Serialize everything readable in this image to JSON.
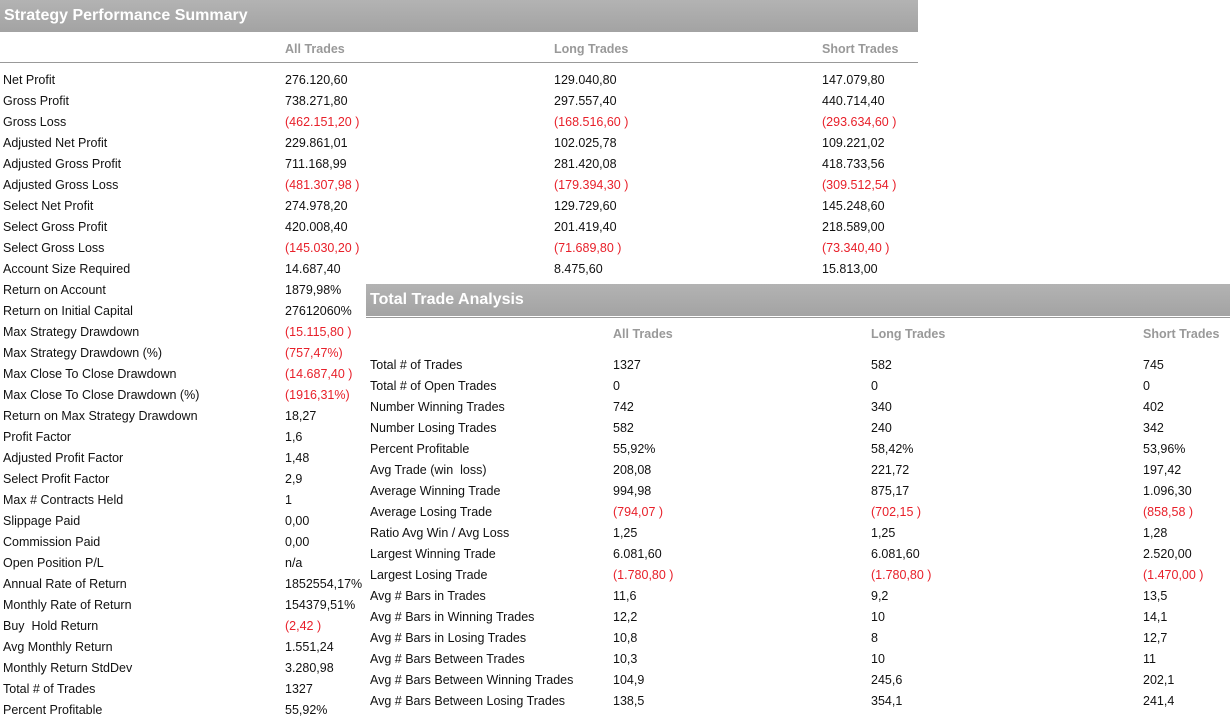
{
  "table1": {
    "title": "Strategy Performance Summary",
    "columns": [
      "All Trades",
      "Long Trades",
      "Short Trades"
    ],
    "rows": [
      [
        "Net Profit",
        "276.120,60",
        "129.040,80",
        "147.079,80"
      ],
      [
        "Gross Profit",
        "738.271,80",
        "297.557,40",
        "440.714,40"
      ],
      [
        "Gross Loss",
        "(462.151,20 )",
        "(168.516,60 )",
        "(293.634,60 )"
      ],
      [
        "Adjusted Net Profit",
        "229.861,01",
        "102.025,78",
        "109.221,02"
      ],
      [
        "Adjusted Gross Profit",
        "711.168,99",
        "281.420,08",
        "418.733,56"
      ],
      [
        "Adjusted Gross Loss",
        "(481.307,98 )",
        "(179.394,30 )",
        "(309.512,54 )"
      ],
      [
        "Select Net Profit",
        "274.978,20",
        "129.729,60",
        "145.248,60"
      ],
      [
        "Select Gross Profit",
        "420.008,40",
        "201.419,40",
        "218.589,00"
      ],
      [
        "Select Gross Loss",
        "(145.030,20 )",
        "(71.689,80 )",
        "(73.340,40 )"
      ],
      [
        "Account Size Required",
        "14.687,40",
        "8.475,60",
        "15.813,00"
      ],
      [
        "Return on Account",
        "1879,98%"
      ],
      [
        "Return on Initial Capital",
        "27612060%"
      ],
      [
        "Max Strategy Drawdown",
        "(15.115,80 )"
      ],
      [
        "Max Strategy Drawdown (%)",
        "(757,47%)"
      ],
      [
        "Max Close To Close Drawdown",
        "(14.687,40 )"
      ],
      [
        "Max Close To Close Drawdown (%)",
        "(1916,31%)"
      ],
      [
        "Return on Max Strategy Drawdown",
        "18,27"
      ],
      [
        "Profit Factor",
        "1,6"
      ],
      [
        "Adjusted Profit Factor",
        "1,48"
      ],
      [
        "Select Profit Factor",
        "2,9"
      ],
      [
        "Max # Contracts Held",
        "1"
      ],
      [
        "Slippage Paid",
        "0,00"
      ],
      [
        "Commission Paid",
        "0,00"
      ],
      [
        "Open Position P/L",
        "n/a"
      ],
      [
        "Annual Rate of Return",
        "1852554,17%"
      ],
      [
        "Monthly Rate of Return",
        "154379,51%"
      ],
      [
        "Buy  Hold Return",
        "(2,42 )"
      ],
      [
        "Avg Monthly Return",
        "1.551,24"
      ],
      [
        "Monthly Return StdDev",
        "3.280,98"
      ],
      [
        "Total # of Trades",
        "1327"
      ],
      [
        "Percent Profitable",
        "55,92%"
      ]
    ]
  },
  "table2": {
    "title": "Total Trade Analysis",
    "columns": [
      "All Trades",
      "Long Trades",
      "Short Trades"
    ],
    "rows": [
      [
        "Total # of Trades",
        "1327",
        "582",
        "745"
      ],
      [
        "Total # of Open Trades",
        "0",
        "0",
        "0"
      ],
      [
        "Number Winning Trades",
        "742",
        "340",
        "402"
      ],
      [
        "Number Losing Trades",
        "582",
        "240",
        "342"
      ],
      [
        "Percent Profitable",
        "55,92%",
        "58,42%",
        "53,96%"
      ],
      [
        "Avg Trade (win  loss)",
        "208,08",
        "221,72",
        "197,42"
      ],
      [
        "Average Winning Trade",
        "994,98",
        "875,17",
        "1.096,30"
      ],
      [
        "Average Losing Trade",
        "(794,07 )",
        "(702,15 )",
        "(858,58 )"
      ],
      [
        "Ratio Avg Win / Avg Loss",
        "1,25",
        "1,25",
        "1,28"
      ],
      [
        "Largest Winning Trade",
        "6.081,60",
        "6.081,60",
        "2.520,00"
      ],
      [
        "Largest Losing Trade",
        "(1.780,80 )",
        "(1.780,80 )",
        "(1.470,00 )"
      ],
      [
        "Avg # Bars in Trades",
        "11,6",
        "9,2",
        "13,5"
      ],
      [
        "Avg # Bars in Winning Trades",
        "12,2",
        "10",
        "14,1"
      ],
      [
        "Avg # Bars in Losing Trades",
        "10,8",
        "8",
        "12,7"
      ],
      [
        "Avg # Bars Between Trades",
        "10,3",
        "10",
        "11"
      ],
      [
        "Avg # Bars Between Winning Trades",
        "104,9",
        "245,6",
        "202,1"
      ],
      [
        "Avg # Bars Between Losing Trades",
        "138,5",
        "354,1",
        "241,4"
      ]
    ]
  }
}
